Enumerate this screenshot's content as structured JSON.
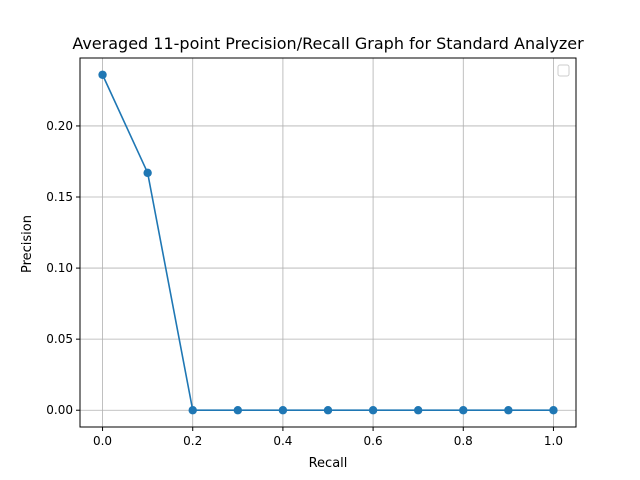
{
  "chart_data": {
    "type": "line",
    "title": "Averaged 11-point Precision/Recall Graph for Standard Analyzer",
    "xlabel": "Recall",
    "ylabel": "Precision",
    "x": [
      0.0,
      0.1,
      0.2,
      0.3,
      0.4,
      0.5,
      0.6,
      0.7,
      0.8,
      0.9,
      1.0
    ],
    "series": [
      {
        "values": [
          0.236,
          0.167,
          0.0,
          0.0,
          0.0,
          0.0,
          0.0,
          0.0,
          0.0,
          0.0,
          0.0
        ],
        "color": "#1f77b4",
        "marker": "circle"
      }
    ],
    "xlim": [
      -0.05,
      1.05
    ],
    "ylim": [
      -0.0118,
      0.2478
    ],
    "xticks": [
      0.0,
      0.2,
      0.4,
      0.6,
      0.8,
      1.0
    ],
    "xtick_labels": [
      "0.0",
      "0.2",
      "0.4",
      "0.6",
      "0.8",
      "1.0"
    ],
    "yticks": [
      0.0,
      0.05,
      0.1,
      0.15,
      0.2
    ],
    "ytick_labels": [
      "0.00",
      "0.05",
      "0.10",
      "0.15",
      "0.20"
    ],
    "grid": true,
    "legend": {
      "placement": "top-right",
      "entries": []
    }
  }
}
